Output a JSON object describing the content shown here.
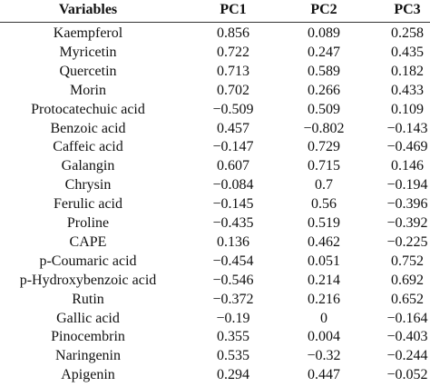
{
  "table": {
    "header": [
      "Variables",
      "PC1",
      "PC2",
      "PC3"
    ],
    "rows": [
      [
        "Kaempferol",
        "0.856",
        "0.089",
        "0.258"
      ],
      [
        "Myricetin",
        "0.722",
        "0.247",
        "0.435"
      ],
      [
        "Quercetin",
        "0.713",
        "0.589",
        "0.182"
      ],
      [
        "Morin",
        "0.702",
        "0.266",
        "0.433"
      ],
      [
        "Protocatechuic acid",
        "−0.509",
        "0.509",
        "0.109"
      ],
      [
        "Benzoic acid",
        "0.457",
        "−0.802",
        "−0.143"
      ],
      [
        "Caffeic acid",
        "−0.147",
        "0.729",
        "−0.469"
      ],
      [
        "Galangin",
        "0.607",
        "0.715",
        "0.146"
      ],
      [
        "Chrysin",
        "−0.084",
        "0.7",
        "−0.194"
      ],
      [
        "Ferulic acid",
        "−0.145",
        "0.56",
        "−0.396"
      ],
      [
        "Proline",
        "−0.435",
        "0.519",
        "−0.392"
      ],
      [
        "CAPE",
        "0.136",
        "0.462",
        "−0.225"
      ],
      [
        "p-Coumaric acid",
        "−0.454",
        "0.051",
        "0.752"
      ],
      [
        "p-Hydroxybenzoic acid",
        "−0.546",
        "0.214",
        "0.692"
      ],
      [
        "Rutin",
        "−0.372",
        "0.216",
        "0.652"
      ],
      [
        "Gallic acid",
        "−0.19",
        "0",
        "−0.164"
      ],
      [
        "Pinocembrin",
        "0.355",
        "0.004",
        "−0.403"
      ],
      [
        "Naringenin",
        "0.535",
        "−0.32",
        "−0.244"
      ],
      [
        "Apigenin",
        "0.294",
        "0.447",
        "−0.052"
      ]
    ]
  }
}
